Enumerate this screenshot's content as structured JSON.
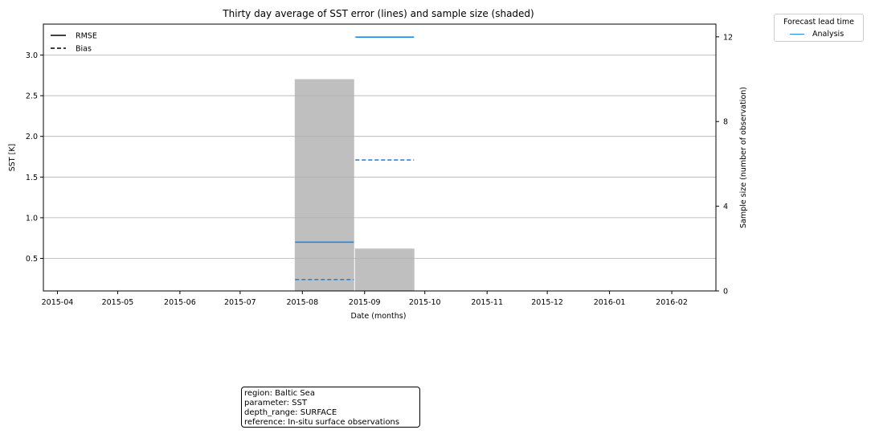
{
  "chart_data": {
    "type": "line",
    "title": "Thirty day average of SST error (lines) and sample size (shaded)",
    "xlabel": "Date (months)",
    "ylabel": "SST [K]",
    "y2label": "Sample size (number of observation)",
    "x_ticks": [
      "2015-04",
      "2015-05",
      "2015-06",
      "2015-07",
      "2015-08",
      "2015-09",
      "2015-10",
      "2015-11",
      "2015-12",
      "2016-01",
      "2016-02"
    ],
    "x_range": [
      "2015-03-25",
      "2016-02-23"
    ],
    "ylim": [
      0.1,
      3.38
    ],
    "y_ticks": [
      0.5,
      1.0,
      1.5,
      2.0,
      2.5,
      3.0
    ],
    "y_tick_labels": [
      "0.5",
      "1.0",
      "1.5",
      "2.0",
      "2.5",
      "3.0"
    ],
    "y2lim": [
      0,
      12.6
    ],
    "y2_ticks": [
      0,
      4,
      8,
      12
    ],
    "y2_tick_labels": [
      "0",
      "4",
      "8",
      "12"
    ],
    "grid": true,
    "style_legend": {
      "placement": "top-left",
      "entries": [
        {
          "label": "RMSE",
          "style": "solid"
        },
        {
          "label": "Bias",
          "style": "dashed"
        }
      ]
    },
    "series_legend": {
      "title": "Forecast lead time",
      "placement": "outside-top-right",
      "entries": [
        {
          "label": "Analysis",
          "color": "#1e88e5"
        }
      ]
    },
    "sample_size": [
      {
        "start": "2015-07-28",
        "end": "2015-08-27",
        "value": 10
      },
      {
        "start": "2015-08-27",
        "end": "2015-09-26",
        "value": 2
      }
    ],
    "series": [
      {
        "name": "Analysis",
        "metric": "RMSE",
        "color": "#1e88e5",
        "style": "solid",
        "segments": [
          {
            "start": "2015-07-28",
            "end": "2015-08-27",
            "value": 0.7
          },
          {
            "start": "2015-08-27",
            "end": "2015-09-26",
            "value": 3.22
          }
        ]
      },
      {
        "name": "Analysis",
        "metric": "Bias",
        "color": "#1e88e5",
        "style": "dashed",
        "segments": [
          {
            "start": "2015-07-28",
            "end": "2015-08-27",
            "value": 0.24
          },
          {
            "start": "2015-08-27",
            "end": "2015-09-26",
            "value": 1.71
          }
        ]
      }
    ],
    "colors": {
      "bars": "#bfbfbf",
      "grid": "#b0b0b0",
      "line": "#1e88e5"
    }
  },
  "info_box": {
    "lines": [
      "region: Baltic Sea",
      "parameter: SST",
      "depth_range: SURFACE",
      "reference: In-situ surface observations"
    ]
  }
}
